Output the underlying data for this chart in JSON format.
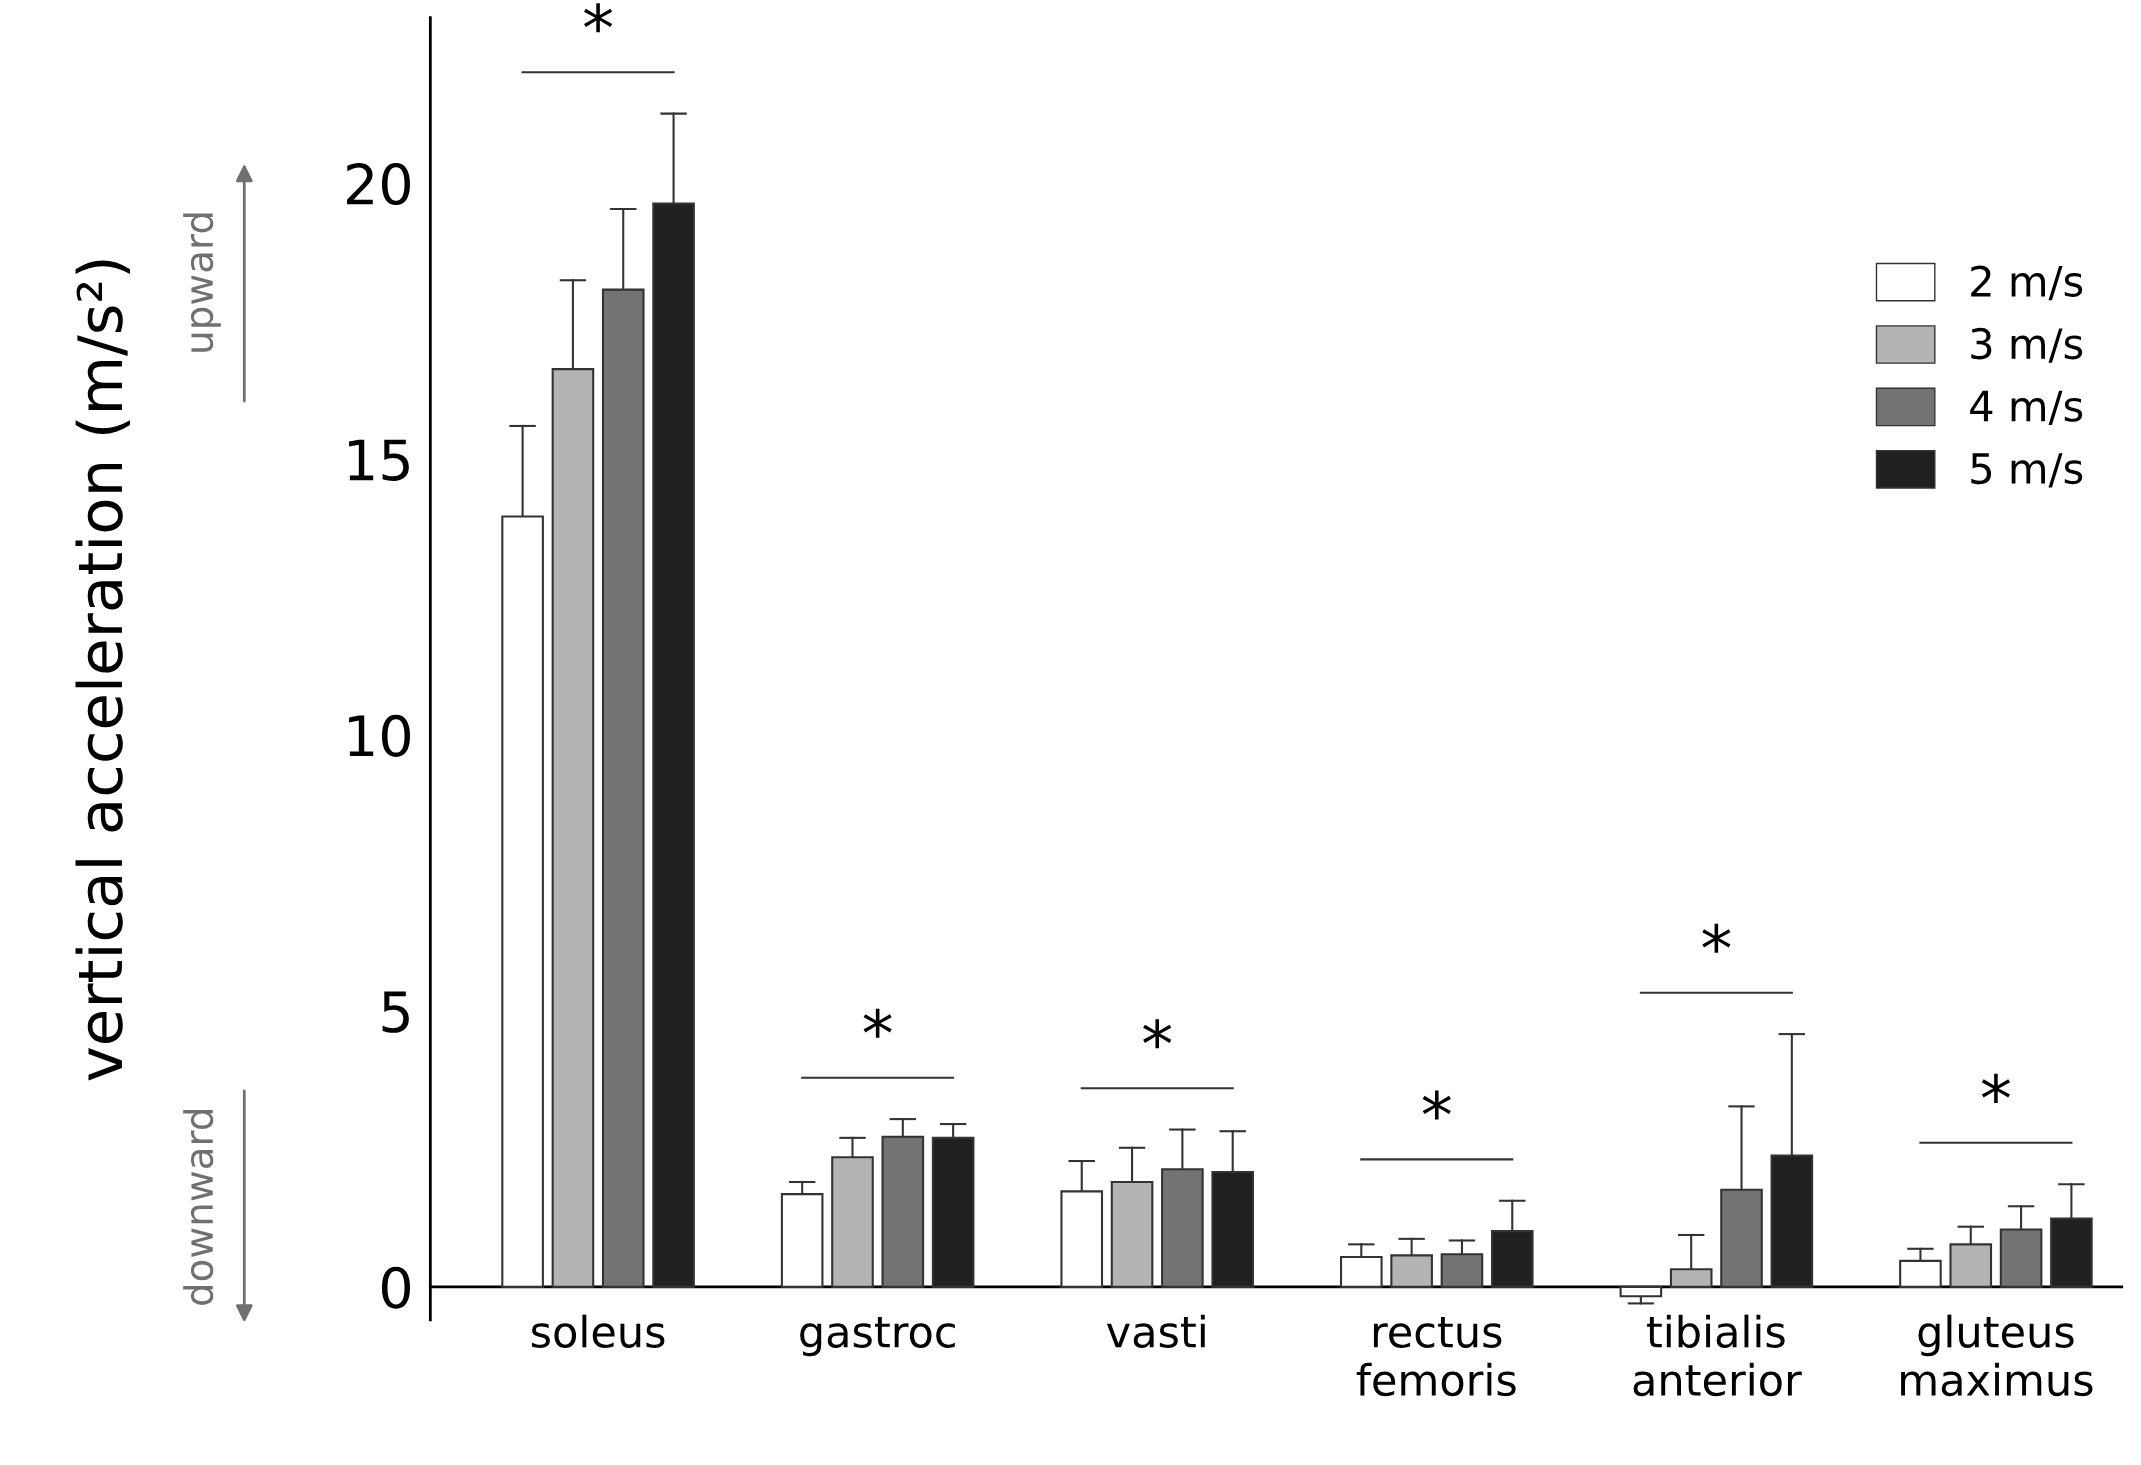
{
  "chart_data": {
    "type": "bar",
    "ylabel": "vertical acceleration (m/s²)",
    "categories": [
      "soleus",
      "gastroc",
      "vasti",
      "rectus\nfemoris",
      "tibialis\nanterior",
      "gluteus\nmaximus"
    ],
    "series": [
      {
        "name": "2 m/s",
        "color": "#ffffff",
        "values": [
          13.96,
          1.68,
          1.73,
          0.54,
          -0.17,
          0.47
        ],
        "errors": [
          [
            13.96,
            15.6
          ],
          [
            1.68,
            1.9
          ],
          [
            1.73,
            2.28
          ],
          [
            0.54,
            0.77
          ],
          [
            -0.3,
            -0.17
          ],
          [
            0.47,
            0.69
          ]
        ]
      },
      {
        "name": "3 m/s",
        "color": "#b4b4b4",
        "values": [
          16.63,
          2.35,
          1.9,
          0.57,
          0.32,
          0.77
        ],
        "errors": [
          [
            16.63,
            18.24
          ],
          [
            2.35,
            2.7
          ],
          [
            1.9,
            2.52
          ],
          [
            0.57,
            0.87
          ],
          [
            0.32,
            0.94
          ],
          [
            0.77,
            1.09
          ]
        ]
      },
      {
        "name": "4 m/s",
        "color": "#737373",
        "values": [
          18.07,
          2.72,
          2.13,
          0.59,
          1.76,
          1.04
        ],
        "errors": [
          [
            18.07,
            19.53
          ],
          [
            2.72,
            3.04
          ],
          [
            2.13,
            2.85
          ],
          [
            0.59,
            0.84
          ],
          [
            1.76,
            3.27
          ],
          [
            1.04,
            1.46
          ]
        ]
      },
      {
        "name": "5 m/s",
        "color": "#202020",
        "values": [
          19.63,
          2.7,
          2.08,
          1.01,
          2.38,
          1.24
        ],
        "errors": [
          [
            19.63,
            21.26
          ],
          [
            2.7,
            2.95
          ],
          [
            2.08,
            2.82
          ],
          [
            1.01,
            1.56
          ],
          [
            2.38,
            4.58
          ],
          [
            1.24,
            1.86
          ]
        ]
      }
    ],
    "ylim": [
      -0.6,
      23
    ],
    "yticks": [
      0,
      5,
      10,
      15,
      20
    ],
    "annotations": [
      "upward",
      "downward",
      "*",
      "*",
      "*",
      "*",
      "*",
      "*"
    ],
    "legend": "top right",
    "grid": false
  }
}
